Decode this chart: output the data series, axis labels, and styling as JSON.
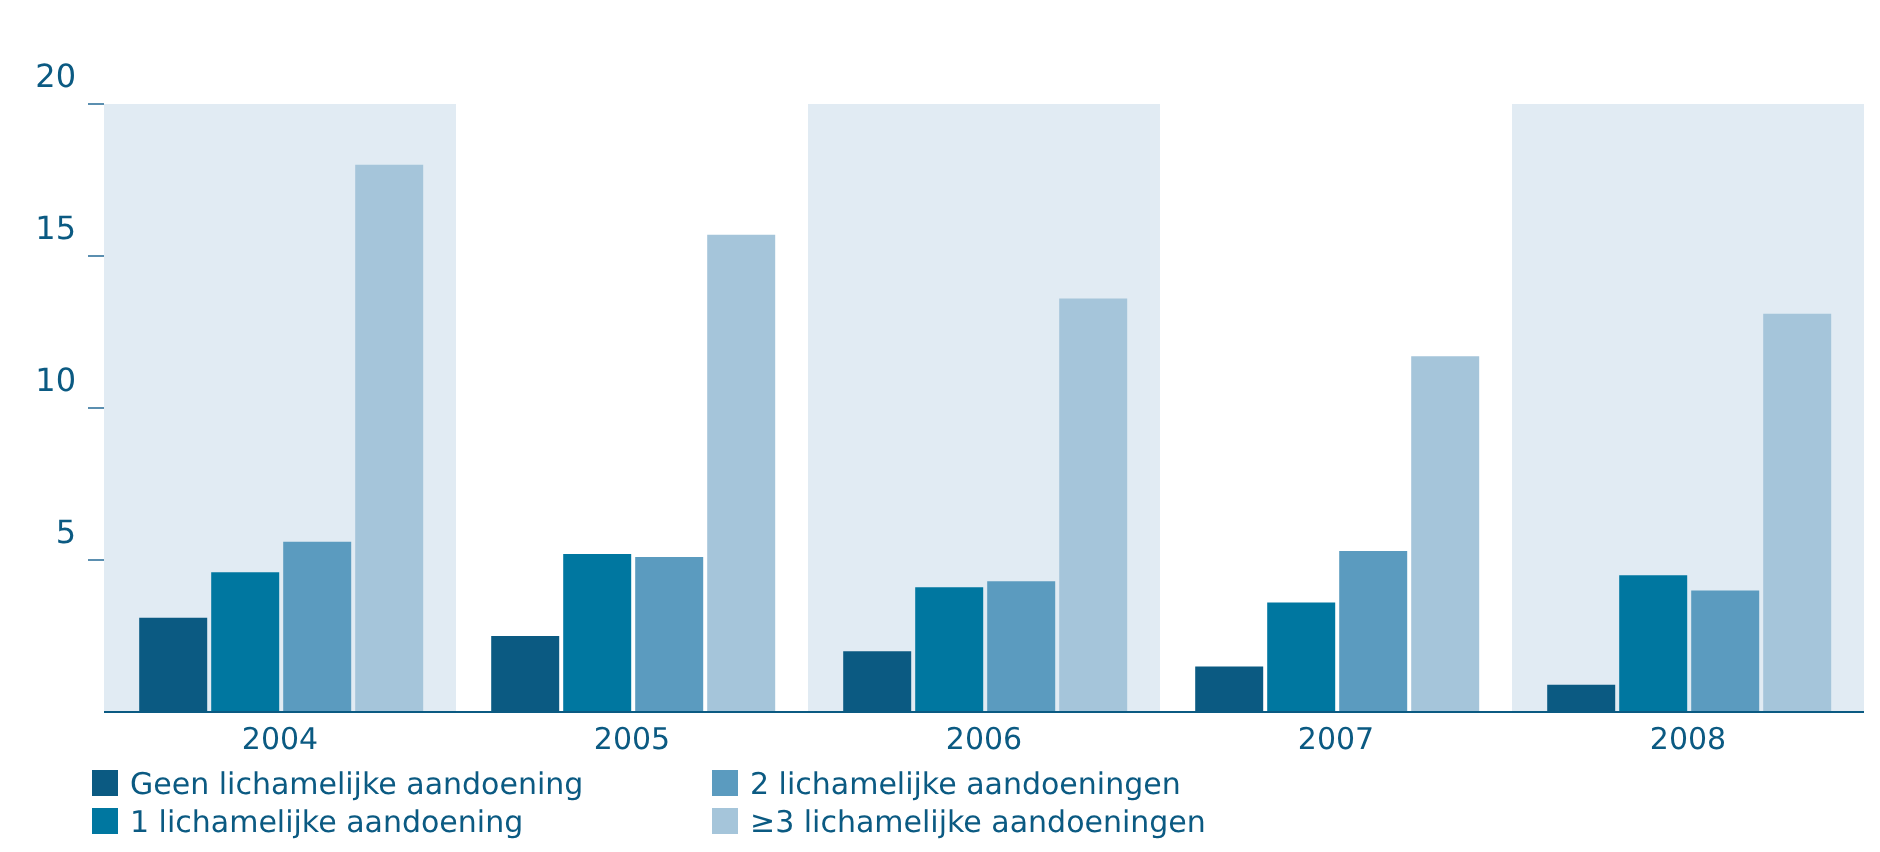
{
  "chart_data": {
    "type": "bar",
    "categories": [
      "2004",
      "2005",
      "2006",
      "2007",
      "2008"
    ],
    "series": [
      {
        "name": "Geen lichamelijke aandoening",
        "color": "#0b5a82",
        "values": [
          3.1,
          2.5,
          2.0,
          1.5,
          0.9
        ]
      },
      {
        "name": "1 lichamelijke aandoening",
        "color": "#0077a0",
        "values": [
          4.6,
          5.2,
          4.1,
          3.6,
          4.5
        ]
      },
      {
        "name": "2 lichamelijke aandoeningen",
        "color": "#5b9bbf",
        "values": [
          5.6,
          5.1,
          4.3,
          5.3,
          4.0
        ]
      },
      {
        "name": "≥3 lichamelijke aandoeningen",
        "color": "#a5c5da",
        "values": [
          18.0,
          15.7,
          13.6,
          11.7,
          13.1
        ]
      }
    ],
    "ylim": [
      0,
      20
    ],
    "yticks": [
      5,
      10,
      15,
      20
    ],
    "bands": [
      {
        "axis": "x",
        "from": "2004",
        "to": "2004",
        "color": "#e1ebf3"
      },
      {
        "axis": "x",
        "from": "2006",
        "to": "2006",
        "color": "#e1ebf3"
      },
      {
        "axis": "x",
        "from": "2008",
        "to": "2008",
        "color": "#e1ebf3"
      }
    ],
    "grid": false,
    "legend": "bottom"
  }
}
